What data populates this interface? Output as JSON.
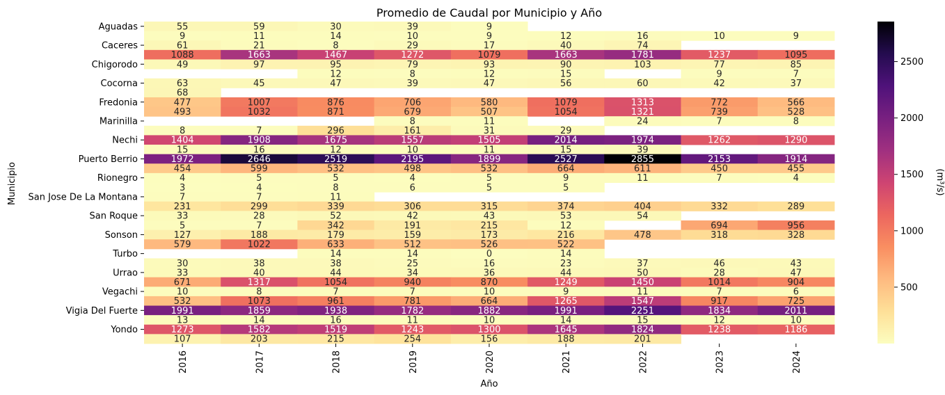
{
  "chart_data": {
    "type": "heatmap",
    "title": "Promedio de Caudal por Municipio y Año",
    "xlabel": "Año",
    "ylabel": "Municipio",
    "x": [
      "2016",
      "2017",
      "2018",
      "2019",
      "2020",
      "2021",
      "2022",
      "2023",
      "2024"
    ],
    "y_tick_labels": [
      "Aguadas",
      "Caceres",
      "Chigorodo",
      "Cocorna",
      "Fredonia",
      "Marinilla",
      "Nechi",
      "Puerto Berrio",
      "Rionegro",
      "San Jose De La Montana",
      "San Roque",
      "Sonson",
      "Turbo",
      "Urrao",
      "Vegachi",
      "Vigia Del Fuerte",
      "Yondo"
    ],
    "values": [
      [
        55,
        59,
        30,
        39,
        9,
        null,
        null,
        null,
        null
      ],
      [
        9,
        11,
        14,
        10,
        9,
        12,
        16,
        10,
        9
      ],
      [
        61,
        21,
        8,
        29,
        17,
        40,
        74,
        null,
        null
      ],
      [
        1088,
        1663,
        1467,
        1272,
        1079,
        1663,
        1781,
        1237,
        1095
      ],
      [
        49,
        97,
        95,
        79,
        93,
        90,
        103,
        77,
        85
      ],
      [
        null,
        null,
        12,
        8,
        12,
        15,
        null,
        9,
        7
      ],
      [
        63,
        45,
        47,
        39,
        47,
        56,
        60,
        42,
        37
      ],
      [
        68,
        null,
        null,
        null,
        null,
        null,
        null,
        null,
        null
      ],
      [
        477,
        1007,
        876,
        706,
        580,
        1079,
        1313,
        772,
        566
      ],
      [
        493,
        1032,
        871,
        679,
        507,
        1054,
        1321,
        739,
        528
      ],
      [
        null,
        null,
        null,
        8,
        11,
        null,
        24,
        7,
        8
      ],
      [
        8,
        7,
        296,
        161,
        31,
        29,
        null,
        null,
        null
      ],
      [
        1404,
        1908,
        1675,
        1557,
        1505,
        2014,
        1974,
        1262,
        1290
      ],
      [
        15,
        16,
        12,
        10,
        11,
        15,
        39,
        null,
        null
      ],
      [
        1972,
        2646,
        2519,
        2195,
        1899,
        2527,
        2855,
        2153,
        1914
      ],
      [
        454,
        599,
        532,
        498,
        532,
        664,
        611,
        450,
        455
      ],
      [
        4,
        5,
        5,
        4,
        5,
        9,
        11,
        7,
        4
      ],
      [
        3,
        4,
        8,
        6,
        5,
        5,
        null,
        null,
        null
      ],
      [
        7,
        7,
        11,
        null,
        null,
        null,
        null,
        null,
        null
      ],
      [
        231,
        299,
        339,
        306,
        315,
        374,
        404,
        332,
        289
      ],
      [
        33,
        28,
        52,
        42,
        43,
        53,
        54,
        null,
        null
      ],
      [
        5,
        7,
        342,
        191,
        215,
        12,
        null,
        694,
        956
      ],
      [
        127,
        188,
        179,
        159,
        173,
        216,
        478,
        318,
        328
      ],
      [
        579,
        1022,
        633,
        512,
        526,
        522,
        null,
        null,
        null
      ],
      [
        null,
        null,
        14,
        14,
        0,
        14,
        null,
        null,
        null
      ],
      [
        30,
        38,
        38,
        25,
        16,
        23,
        37,
        46,
        43
      ],
      [
        33,
        40,
        44,
        34,
        36,
        44,
        50,
        28,
        47
      ],
      [
        671,
        1317,
        1054,
        940,
        870,
        1249,
        1450,
        1014,
        904
      ],
      [
        10,
        8,
        7,
        7,
        10,
        9,
        11,
        7,
        6
      ],
      [
        532,
        1073,
        961,
        781,
        664,
        1265,
        1547,
        917,
        725
      ],
      [
        1991,
        1859,
        1938,
        1782,
        1882,
        1991,
        2251,
        1834,
        2011
      ],
      [
        13,
        14,
        16,
        11,
        10,
        14,
        15,
        12,
        10
      ],
      [
        1273,
        1582,
        1519,
        1243,
        1300,
        1645,
        1824,
        1238,
        1186
      ],
      [
        107,
        203,
        215,
        254,
        156,
        188,
        201,
        null,
        null
      ]
    ],
    "color_scale": {
      "colormap": "magma_r",
      "vmin": 0,
      "vmax": 2855,
      "label": "(m³/s)",
      "ticks": [
        500,
        1000,
        1500,
        2000,
        2500
      ]
    },
    "grid": false,
    "colorbar_position": "right"
  }
}
